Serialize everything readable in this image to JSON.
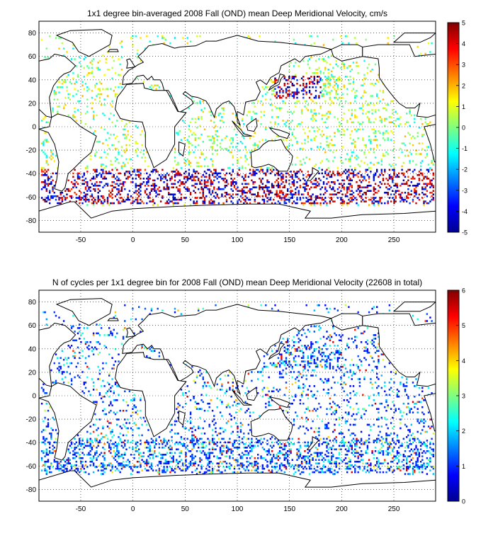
{
  "chart_data": [
    {
      "type": "heatmap",
      "title": "1x1 degree bin-averaged 2008 Fall (OND) mean Deep Meridional Velocity, cm/s",
      "xlabel": "",
      "ylabel": "",
      "xlim": [
        -90,
        290
      ],
      "ylim": [
        -90,
        90
      ],
      "xticks": [
        -50,
        0,
        50,
        100,
        150,
        200,
        250
      ],
      "yticks": [
        80,
        60,
        40,
        20,
        0,
        -20,
        -40,
        -60,
        -80
      ],
      "grid": true,
      "grid_style": "dotted",
      "colormap": "jet",
      "colorbar": {
        "min": -5,
        "max": 5,
        "ticks": [
          5,
          4,
          3,
          2,
          1,
          0,
          -1,
          -2,
          -3,
          -4,
          -5
        ],
        "placement": "right"
      },
      "description_of_values": "scattered 1x1 degree cells over the world ocean; high values (red) and low values (blue) concentrated in the Southern Ocean (40S-65S) and Kuroshio region (30-45N, 140-170E); near-zero (green/cyan) elsewhere"
    },
    {
      "type": "heatmap",
      "title": "N of cycles per 1x1 degree bin for 2008 Fall (OND) mean Deep Meridional Velocity (22608 in total)",
      "xlabel": "",
      "ylabel": "",
      "xlim": [
        -90,
        290
      ],
      "ylim": [
        -90,
        90
      ],
      "xticks": [
        -50,
        0,
        50,
        100,
        150,
        200,
        250
      ],
      "yticks": [
        80,
        60,
        40,
        20,
        0,
        -20,
        -40,
        -60,
        -80
      ],
      "grid": true,
      "grid_style": "dotted",
      "colormap": "jet",
      "colorbar": {
        "min": 0,
        "max": 6,
        "ticks": [
          6,
          5,
          4,
          3,
          2,
          1,
          0
        ],
        "placement": "right"
      },
      "total_cycles": 22608,
      "description_of_values": "most bins contain 1-2 cycles (blue/cyan); a few bins with 3-6 cycles (yellow/orange/red) scattered in the subtropical Pacific and Atlantic"
    }
  ],
  "colors": {
    "land_outline": "#000000",
    "background": "#ffffff",
    "grid": "#000000"
  }
}
